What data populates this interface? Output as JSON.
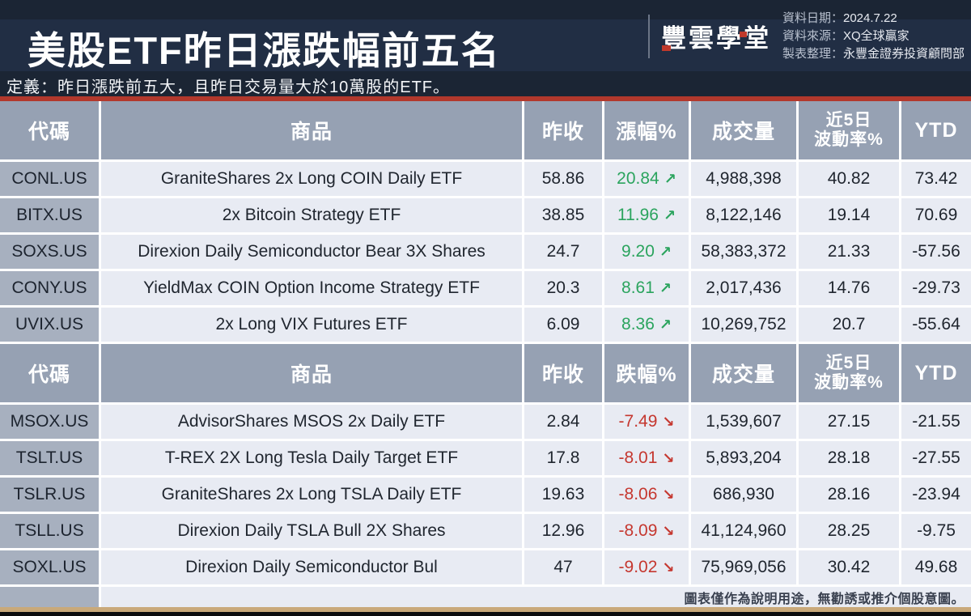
{
  "header": {
    "brand": "豐雲學堂",
    "meta": [
      {
        "label": "資料日期：",
        "value": "2024.7.22"
      },
      {
        "label": "資料來源：",
        "value": "XQ全球贏家"
      },
      {
        "label": "製表整理：",
        "value": "永豐金證券投資顧問部"
      }
    ]
  },
  "definition": "定義：昨日漲跌前五大，且昨日交易量大於10萬股的ETF。",
  "disclaimer": "圖表僅作為說明用途，無勸誘或推介個股意圖。",
  "colors": {
    "background": "#1b2534",
    "accent_red_line": "#b2382c",
    "header_cell": "#96a1b3",
    "code_cell": "#a7b0bf",
    "data_cell": "#e8ebf3",
    "up_green": "#2ba45e",
    "down_red": "#c5372f",
    "bottom_tan_bar": "#c9a97a"
  },
  "chart_data": {
    "type": "table",
    "title": "美股ETF昨日漲跌幅前五名",
    "sections": [
      {
        "direction": "up",
        "arrow": "↗",
        "headers": {
          "code": "代碼",
          "name": "商品",
          "close": "昨收",
          "change": "漲幅%",
          "volume": "成交量",
          "vol5d_line1": "近5日",
          "vol5d_line2": "波動率%",
          "ytd": "YTD"
        },
        "rows": [
          {
            "code": "CONL.US",
            "name": "GraniteShares 2x Long COIN Daily ETF",
            "close": "58.86",
            "change": "20.84",
            "volume": "4,988,398",
            "vol5d": "40.82",
            "ytd": "73.42"
          },
          {
            "code": "BITX.US",
            "name": "2x Bitcoin Strategy ETF",
            "close": "38.85",
            "change": "11.96",
            "volume": "8,122,146",
            "vol5d": "19.14",
            "ytd": "70.69"
          },
          {
            "code": "SOXS.US",
            "name": "Direxion Daily Semiconductor Bear 3X Shares",
            "close": "24.7",
            "change": "9.20",
            "volume": "58,383,372",
            "vol5d": "21.33",
            "ytd": "-57.56"
          },
          {
            "code": "CONY.US",
            "name": "YieldMax COIN Option Income Strategy ETF",
            "close": "20.3",
            "change": "8.61",
            "volume": "2,017,436",
            "vol5d": "14.76",
            "ytd": "-29.73"
          },
          {
            "code": "UVIX.US",
            "name": "2x Long VIX Futures ETF",
            "close": "6.09",
            "change": "8.36",
            "volume": "10,269,752",
            "vol5d": "20.7",
            "ytd": "-55.64"
          }
        ]
      },
      {
        "direction": "down",
        "arrow": "↘",
        "headers": {
          "code": "代碼",
          "name": "商品",
          "close": "昨收",
          "change": "跌幅%",
          "volume": "成交量",
          "vol5d_line1": "近5日",
          "vol5d_line2": "波動率%",
          "ytd": "YTD"
        },
        "rows": [
          {
            "code": "MSOX.US",
            "name": "AdvisorShares MSOS 2x Daily ETF",
            "close": "2.84",
            "change": "-7.49",
            "volume": "1,539,607",
            "vol5d": "27.15",
            "ytd": "-21.55"
          },
          {
            "code": "TSLT.US",
            "name": "T-REX 2X Long Tesla Daily Target ETF",
            "close": "17.8",
            "change": "-8.01",
            "volume": "5,893,204",
            "vol5d": "28.18",
            "ytd": "-27.55"
          },
          {
            "code": "TSLR.US",
            "name": "GraniteShares 2x Long TSLA Daily ETF",
            "close": "19.63",
            "change": "-8.06",
            "volume": "686,930",
            "vol5d": "28.16",
            "ytd": "-23.94"
          },
          {
            "code": "TSLL.US",
            "name": "Direxion Daily TSLA Bull 2X Shares",
            "close": "12.96",
            "change": "-8.09",
            "volume": "41,124,960",
            "vol5d": "28.25",
            "ytd": "-9.75"
          },
          {
            "code": "SOXL.US",
            "name": "Direxion Daily Semiconductor Bul",
            "close": "47",
            "change": "-9.02",
            "volume": "75,969,056",
            "vol5d": "30.42",
            "ytd": "49.68"
          }
        ]
      }
    ]
  }
}
